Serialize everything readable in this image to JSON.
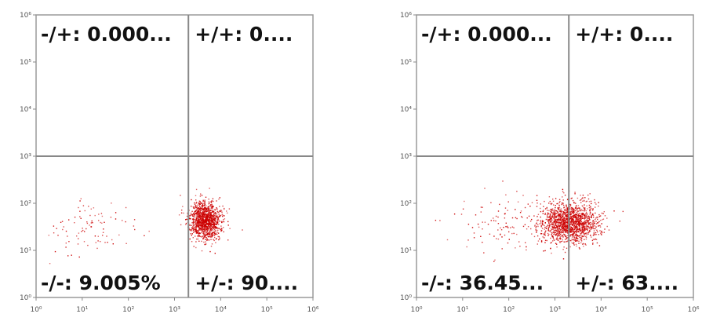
{
  "chart_data": [
    {
      "type": "scatter",
      "scale": "log",
      "xlim": [
        1,
        1000000
      ],
      "ylim": [
        1,
        1000000
      ],
      "x_ticks": [
        "10⁰",
        "10¹",
        "10²",
        "10³",
        "10⁴",
        "10⁵",
        "10⁶"
      ],
      "y_ticks": [
        "10⁰",
        "10¹",
        "10²",
        "10³",
        "10⁴",
        "10⁵",
        "10⁶"
      ],
      "gate": {
        "x": 2000,
        "y": 1000
      },
      "quadrants": {
        "upper_left": "-/+: 0.000...",
        "upper_right": "+/+: 0....",
        "lower_left": "-/-: 9.005%",
        "lower_right": "+/-: 90...."
      },
      "populations": [
        {
          "name": "",
          "center_log": [
            3.65,
            1.65
          ],
          "spread_log": [
            0.17,
            0.2
          ],
          "count": 1200
        },
        {
          "name": "",
          "center_log": [
            1.3,
            1.5
          ],
          "spread_log": [
            0.55,
            0.3
          ],
          "count": 90
        }
      ]
    },
    {
      "type": "scatter",
      "scale": "log",
      "xlim": [
        1,
        1000000
      ],
      "ylim": [
        1,
        1000000
      ],
      "x_ticks": [
        "10⁰",
        "10¹",
        "10²",
        "10³",
        "10⁴",
        "10⁵",
        "10⁶"
      ],
      "y_ticks": [
        "10⁰",
        "10¹",
        "10²",
        "10³",
        "10⁴",
        "10⁵",
        "10⁶"
      ],
      "gate": {
        "x": 2000,
        "y": 1000
      },
      "quadrants": {
        "upper_left": "-/+: 0.000...",
        "upper_right": "+/+: 0....",
        "lower_left": "-/-: 36.45...",
        "lower_right": "+/-: 63...."
      },
      "populations": [
        {
          "name": "",
          "center_log": [
            3.3,
            1.6
          ],
          "spread_log": [
            0.32,
            0.22
          ],
          "count": 1500
        },
        {
          "name": "",
          "center_log": [
            1.8,
            1.5
          ],
          "spread_log": [
            0.5,
            0.3
          ],
          "count": 110
        }
      ]
    }
  ],
  "colors": {
    "dot": "#cc0000",
    "gate": "#888888",
    "frame": "#9a9a9a"
  }
}
